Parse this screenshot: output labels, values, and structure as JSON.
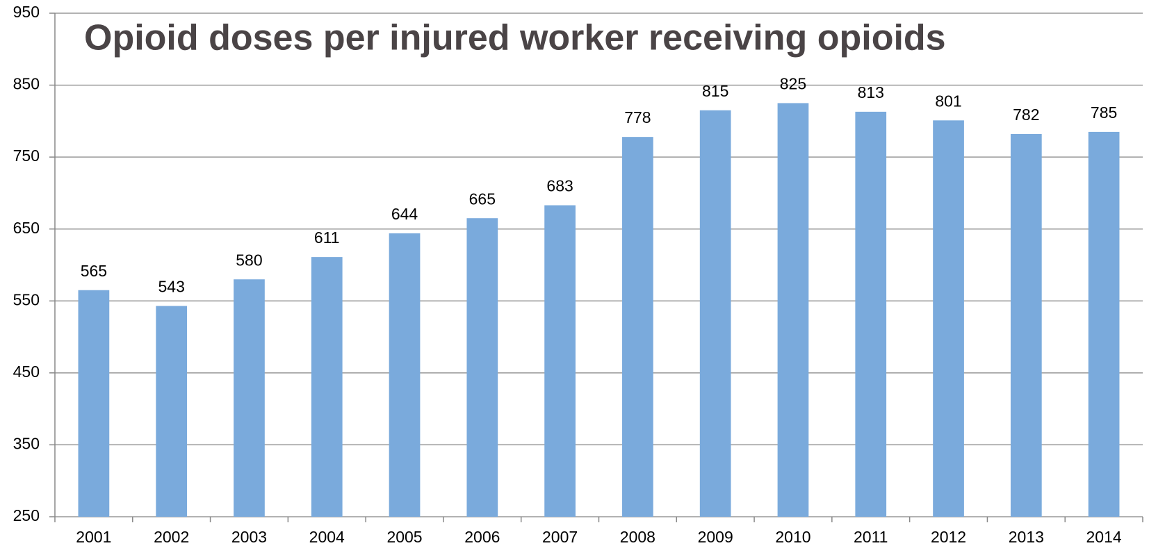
{
  "chart_data": {
    "type": "bar",
    "title": "Opioid doses per injured worker receiving opioids",
    "categories": [
      "2001",
      "2002",
      "2003",
      "2004",
      "2005",
      "2006",
      "2007",
      "2008",
      "2009",
      "2010",
      "2011",
      "2012",
      "2013",
      "2014"
    ],
    "values": [
      565,
      543,
      580,
      611,
      644,
      665,
      683,
      778,
      815,
      825,
      813,
      801,
      782,
      785
    ],
    "color": "#7aaadc",
    "ylim": [
      250,
      950
    ],
    "yticks": [
      250,
      350,
      450,
      550,
      650,
      750,
      850,
      950
    ],
    "grid": true
  }
}
